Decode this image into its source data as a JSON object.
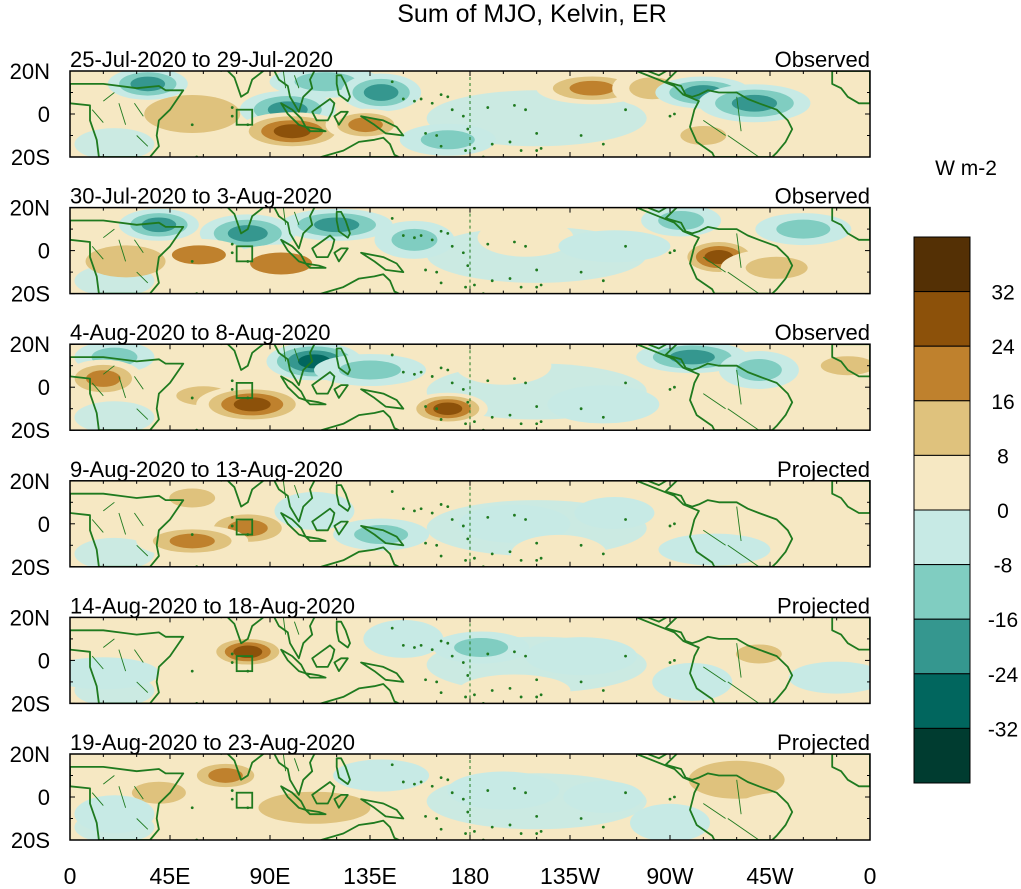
{
  "chart_data": {
    "type": "heatmap",
    "title": "Sum of MJO, Kelvin, ER",
    "unit": "W m-2",
    "x_ticks": [
      "0",
      "45E",
      "90E",
      "135E",
      "180",
      "135W",
      "90W",
      "45W",
      "0"
    ],
    "y_ticks": [
      "20N",
      "0",
      "20S"
    ],
    "xlim": [
      0,
      360
    ],
    "ylim": [
      -20,
      20
    ],
    "colorbar": {
      "levels": [
        -40,
        -32,
        -24,
        -16,
        -8,
        0,
        8,
        16,
        24,
        32,
        40
      ],
      "labels": [
        "-32",
        "-24",
        "-16",
        "-8",
        "0",
        "8",
        "16",
        "24",
        "32"
      ],
      "colors": [
        "#003c30",
        "#01665e",
        "#35978f",
        "#80cdc1",
        "#c7eae5",
        "#f6e8c3",
        "#dfc27d",
        "#bf812d",
        "#8c510a",
        "#543005"
      ]
    },
    "panels": [
      {
        "period": "25-Jul-2020 to 29-Jul-2020",
        "status": "Observed",
        "anomalies": [
          {
            "lon": 35,
            "lat": 14,
            "value": -22
          },
          {
            "lon": 98,
            "lat": 2,
            "value": -20
          },
          {
            "lon": 115,
            "lat": 15,
            "value": -15
          },
          {
            "lon": 140,
            "lat": 10,
            "value": -18
          },
          {
            "lon": 170,
            "lat": -12,
            "value": -16
          },
          {
            "lon": 100,
            "lat": -8,
            "value": 26
          },
          {
            "lon": 133,
            "lat": -5,
            "value": 18
          },
          {
            "lon": 55,
            "lat": 0,
            "value": 8
          },
          {
            "lon": 235,
            "lat": 12,
            "value": 20
          },
          {
            "lon": 262,
            "lat": 12,
            "value": 12
          },
          {
            "lon": 285,
            "lat": 10,
            "value": -22
          },
          {
            "lon": 308,
            "lat": 5,
            "value": -18
          },
          {
            "lon": 285,
            "lat": -10,
            "value": 10
          }
        ]
      },
      {
        "period": "30-Jul-2020 to 3-Aug-2020",
        "status": "Observed",
        "anomalies": [
          {
            "lon": 40,
            "lat": 12,
            "value": -20
          },
          {
            "lon": 80,
            "lat": 8,
            "value": -24
          },
          {
            "lon": 120,
            "lat": 12,
            "value": -20
          },
          {
            "lon": 155,
            "lat": 5,
            "value": -10
          },
          {
            "lon": 58,
            "lat": -2,
            "value": 16
          },
          {
            "lon": 95,
            "lat": -6,
            "value": 16
          },
          {
            "lon": 25,
            "lat": -5,
            "value": 8
          },
          {
            "lon": 205,
            "lat": 6,
            "value": 6
          },
          {
            "lon": 245,
            "lat": 2,
            "value": -8
          },
          {
            "lon": 292,
            "lat": -3,
            "value": 30
          },
          {
            "lon": 330,
            "lat": 10,
            "value": -12
          },
          {
            "lon": 318,
            "lat": -8,
            "value": 14
          },
          {
            "lon": 275,
            "lat": 14,
            "value": -10
          }
        ]
      },
      {
        "period": "4-Aug-2020 to 8-Aug-2020",
        "status": "Observed",
        "anomalies": [
          {
            "lon": 20,
            "lat": 14,
            "value": -16
          },
          {
            "lon": 110,
            "lat": 12,
            "value": -26
          },
          {
            "lon": 135,
            "lat": 8,
            "value": -16
          },
          {
            "lon": 15,
            "lat": 4,
            "value": 22
          },
          {
            "lon": 60,
            "lat": -4,
            "value": 14
          },
          {
            "lon": 82,
            "lat": -8,
            "value": 28
          },
          {
            "lon": 170,
            "lat": -10,
            "value": 28
          },
          {
            "lon": 195,
            "lat": 10,
            "value": 6
          },
          {
            "lon": 280,
            "lat": 14,
            "value": -24
          },
          {
            "lon": 310,
            "lat": 8,
            "value": -14
          },
          {
            "lon": 350,
            "lat": 10,
            "value": 12
          },
          {
            "lon": 240,
            "lat": -8,
            "value": -8
          }
        ]
      },
      {
        "period": "9-Aug-2020 to 13-Aug-2020",
        "status": "Projected",
        "anomalies": [
          {
            "lon": 55,
            "lat": 12,
            "value": 12
          },
          {
            "lon": 80,
            "lat": -2,
            "value": 20
          },
          {
            "lon": 55,
            "lat": -8,
            "value": 18
          },
          {
            "lon": 110,
            "lat": 6,
            "value": -8
          },
          {
            "lon": 140,
            "lat": -5,
            "value": -9
          },
          {
            "lon": 200,
            "lat": 0,
            "value": -6
          },
          {
            "lon": 245,
            "lat": 5,
            "value": -7
          },
          {
            "lon": 220,
            "lat": -14,
            "value": 6
          },
          {
            "lon": 290,
            "lat": -12,
            "value": -6
          },
          {
            "lon": 335,
            "lat": 5,
            "value": 6
          }
        ]
      },
      {
        "period": "14-Aug-2020 to 18-Aug-2020",
        "status": "Projected",
        "anomalies": [
          {
            "lon": 80,
            "lat": 4,
            "value": 26
          },
          {
            "lon": 45,
            "lat": 0,
            "value": 6
          },
          {
            "lon": 15,
            "lat": -6,
            "value": -6
          },
          {
            "lon": 150,
            "lat": 10,
            "value": -7
          },
          {
            "lon": 185,
            "lat": 6,
            "value": -14
          },
          {
            "lon": 230,
            "lat": 2,
            "value": -8
          },
          {
            "lon": 310,
            "lat": 3,
            "value": 12
          },
          {
            "lon": 120,
            "lat": -12,
            "value": 6
          },
          {
            "lon": 200,
            "lat": -14,
            "value": 6
          },
          {
            "lon": 280,
            "lat": -10,
            "value": -6
          },
          {
            "lon": 345,
            "lat": -8,
            "value": -6
          }
        ]
      },
      {
        "period": "19-Aug-2020 to 23-Aug-2020",
        "status": "Projected",
        "anomalies": [
          {
            "lon": 70,
            "lat": 10,
            "value": 18
          },
          {
            "lon": 40,
            "lat": 2,
            "value": 10
          },
          {
            "lon": 110,
            "lat": -5,
            "value": 8
          },
          {
            "lon": 20,
            "lat": -8,
            "value": -7
          },
          {
            "lon": 140,
            "lat": 10,
            "value": -7
          },
          {
            "lon": 195,
            "lat": 3,
            "value": -8
          },
          {
            "lon": 240,
            "lat": 0,
            "value": -6
          },
          {
            "lon": 300,
            "lat": 8,
            "value": 8
          },
          {
            "lon": 325,
            "lat": -5,
            "value": 6
          },
          {
            "lon": 270,
            "lat": -12,
            "value": -6
          }
        ]
      }
    ]
  }
}
